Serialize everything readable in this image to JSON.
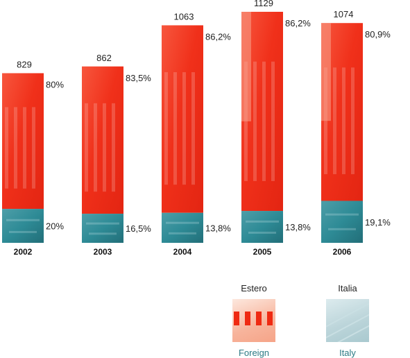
{
  "chart_data": {
    "type": "bar",
    "stacked": true,
    "categories": [
      "2002",
      "2003",
      "2004",
      "2005",
      "2006"
    ],
    "totals": [
      829,
      862,
      1063,
      1129,
      1074
    ],
    "series": [
      {
        "name": "Foreign",
        "values": [
          663.2,
          719.8,
          916.3,
          973.2,
          868.9
        ],
        "labels": [
          "80%",
          "83,5%",
          "86,2%",
          "86,2%",
          "80,9%"
        ]
      },
      {
        "name": "Italy",
        "values": [
          165.8,
          142.2,
          146.7,
          155.8,
          205.1
        ],
        "labels": [
          "20%",
          "16,5%",
          "13,8%",
          "13,8%",
          "19,1%"
        ]
      }
    ],
    "ylim": [
      0,
      1129
    ],
    "grid": false,
    "legend_placement": "bottom-right"
  },
  "legend": {
    "foreign": {
      "title": "Estero",
      "subtitle": "Foreign"
    },
    "italy": {
      "title": "Italia",
      "subtitle": "Italy"
    }
  },
  "colors": {
    "foreign": "#f0301a",
    "foreign_dark": "#d82010",
    "foreign_light": "#f8a38c",
    "italy": "#2e8b96",
    "italy_dark": "#1f6e78",
    "italy_light": "#7fbcc4",
    "subtitle": "#2b7a84"
  }
}
